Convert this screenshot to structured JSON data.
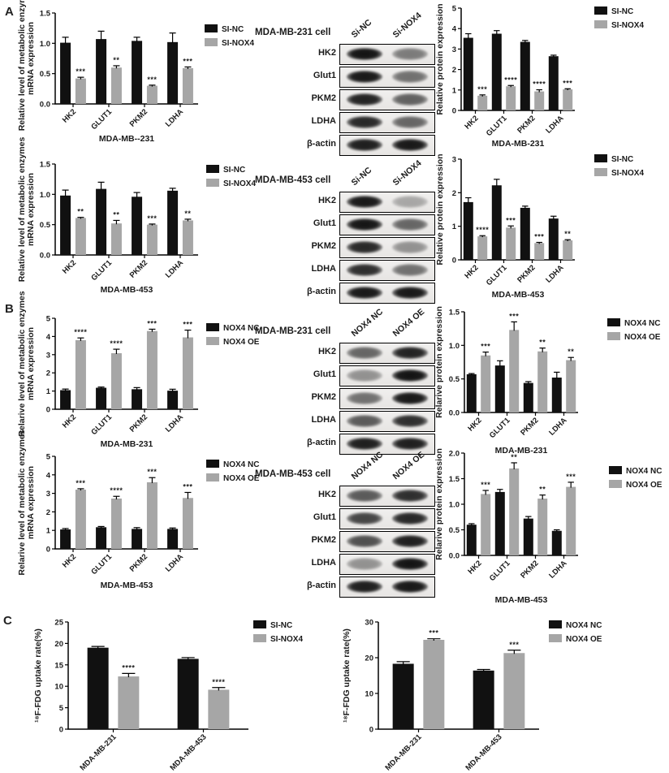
{
  "figure": {
    "panel_labels": {
      "A": "A",
      "B": "B",
      "C": "C"
    }
  },
  "colors": {
    "bar_black": "#111111",
    "bar_gray": "#a6a6a6"
  },
  "blots": [
    {
      "title": "MDA-MB-231 cell",
      "lanes": [
        "Si-NC",
        "Si-NOX4"
      ],
      "rows": [
        "HK2",
        "Glut1",
        "PKM2",
        "LDHA",
        "β-actin"
      ],
      "band_intensities": [
        [
          0.97,
          0.5
        ],
        [
          0.95,
          0.55
        ],
        [
          0.9,
          0.62
        ],
        [
          0.88,
          0.6
        ],
        [
          0.92,
          0.95
        ]
      ]
    },
    {
      "title": "MDA-MB-453 cell",
      "lanes": [
        "Si-NC",
        "Si-NOX4"
      ],
      "rows": [
        "HK2",
        "Glut1",
        "PKM2",
        "LDHA",
        "β-actin"
      ],
      "band_intensities": [
        [
          0.95,
          0.3
        ],
        [
          0.96,
          0.6
        ],
        [
          0.88,
          0.4
        ],
        [
          0.85,
          0.55
        ],
        [
          0.95,
          0.95
        ]
      ]
    },
    {
      "title": "MDA-MB-231 cell",
      "lanes": [
        "NOX4 NC",
        "NOX4 OE"
      ],
      "rows": [
        "HK2",
        "Glut1",
        "PKM2",
        "LDHA",
        "β-actin"
      ],
      "band_intensities": [
        [
          0.6,
          0.9
        ],
        [
          0.4,
          0.97
        ],
        [
          0.55,
          0.95
        ],
        [
          0.65,
          0.85
        ],
        [
          0.92,
          0.92
        ]
      ]
    },
    {
      "title": "MDA-MB-453 cell",
      "lanes": [
        "NOX4 NC",
        "NOX4 OE"
      ],
      "rows": [
        "HK2",
        "Glut1",
        "PKM2",
        "LDHA",
        "β-actin"
      ],
      "band_intensities": [
        [
          0.65,
          0.85
        ],
        [
          0.75,
          0.88
        ],
        [
          0.7,
          0.92
        ],
        [
          0.4,
          0.97
        ],
        [
          0.92,
          0.95
        ]
      ]
    }
  ],
  "chart_data": [
    {
      "type": "bar",
      "categories": [
        "HK2",
        "GLUT1",
        "PKM2",
        "LDHA"
      ],
      "series": [
        {
          "name": "SI-NC",
          "color": "#111111",
          "values": [
            1.01,
            1.07,
            1.04,
            1.02
          ],
          "errors": [
            0.09,
            0.13,
            0.06,
            0.15
          ]
        },
        {
          "name": "SI-NOX4",
          "color": "#a6a6a6",
          "values": [
            0.42,
            0.6,
            0.3,
            0.59
          ],
          "errors": [
            0.02,
            0.03,
            0.01,
            0.02
          ]
        }
      ],
      "sig": [
        "***",
        "**",
        "***",
        "***"
      ],
      "ylabel": [
        "Relative level of  metabolic enzymes",
        "mRNA expression"
      ],
      "xlabel": "MDA-MB--231",
      "ylim": [
        0,
        1.5
      ],
      "yticks": [
        0.0,
        0.5,
        1.0,
        1.5
      ],
      "ytick_decimals": 1,
      "legend_position": "right"
    },
    {
      "type": "bar",
      "categories": [
        "HK2",
        "GLUT1",
        "PKM2",
        "LDHA"
      ],
      "series": [
        {
          "name": "SI-NC",
          "color": "#111111",
          "values": [
            3.55,
            3.75,
            3.35,
            2.65
          ],
          "errors": [
            0.2,
            0.15,
            0.07,
            0.05
          ]
        },
        {
          "name": "SI-NOX4",
          "color": "#a6a6a6",
          "values": [
            0.72,
            1.18,
            0.93,
            1.03
          ],
          "errors": [
            0.04,
            0.04,
            0.08,
            0.03
          ]
        }
      ],
      "sig": [
        "***",
        "****",
        "****",
        "***"
      ],
      "ylabel": [
        "Relative protein expression"
      ],
      "xlabel": "MDA-MB-231",
      "ylim": [
        0,
        5
      ],
      "yticks": [
        0,
        1,
        2,
        3,
        4,
        5
      ],
      "ytick_decimals": 0,
      "legend_position": "right"
    },
    {
      "type": "bar",
      "categories": [
        "HK2",
        "GLUT1",
        "PKM2",
        "LDHA"
      ],
      "series": [
        {
          "name": "SI-NC",
          "color": "#111111",
          "values": [
            0.98,
            1.09,
            0.96,
            1.06
          ],
          "errors": [
            0.09,
            0.11,
            0.07,
            0.04
          ]
        },
        {
          "name": "SI-NOX4",
          "color": "#a6a6a6",
          "values": [
            0.61,
            0.52,
            0.5,
            0.57
          ],
          "errors": [
            0.01,
            0.05,
            0.01,
            0.02
          ]
        }
      ],
      "sig": [
        "**",
        "**",
        "***",
        "**"
      ],
      "ylabel": [
        "Relative level of metabolic enzymes",
        "mRNA expression"
      ],
      "xlabel": "MDA-MB-453",
      "ylim": [
        0,
        1.5
      ],
      "yticks": [
        0.0,
        0.5,
        1.0,
        1.5
      ],
      "ytick_decimals": 1,
      "legend_position": "right"
    },
    {
      "type": "bar",
      "categories": [
        "HK2",
        "GLUT1",
        "PKM2",
        "LDHA"
      ],
      "series": [
        {
          "name": "SI-NC",
          "color": "#111111",
          "values": [
            1.72,
            2.22,
            1.55,
            1.23
          ],
          "errors": [
            0.13,
            0.18,
            0.05,
            0.07
          ]
        },
        {
          "name": "SI-NOX4",
          "color": "#a6a6a6",
          "values": [
            0.7,
            0.96,
            0.5,
            0.58
          ],
          "errors": [
            0.02,
            0.05,
            0.02,
            0.02
          ]
        }
      ],
      "sig": [
        "****",
        "***",
        "***",
        "**"
      ],
      "ylabel": [
        "Relative protein expression"
      ],
      "xlabel": "MDA-MB-453",
      "ylim": [
        0,
        3
      ],
      "yticks": [
        0,
        1,
        2,
        3
      ],
      "ytick_decimals": 0,
      "legend_position": "right"
    },
    {
      "type": "bar",
      "categories": [
        "HK2",
        "GLUT1",
        "PKM2",
        "LDHA"
      ],
      "series": [
        {
          "name": "NOX4 NC",
          "color": "#111111",
          "values": [
            1.05,
            1.18,
            1.1,
            1.02
          ],
          "errors": [
            0.06,
            0.04,
            0.09,
            0.08
          ]
        },
        {
          "name": "NOX4 OE",
          "color": "#a6a6a6",
          "values": [
            3.8,
            3.08,
            4.3,
            3.95
          ],
          "errors": [
            0.12,
            0.22,
            0.1,
            0.4
          ]
        }
      ],
      "sig": [
        "****",
        "****",
        "***",
        "***"
      ],
      "ylabel": [
        "Relarive level of metabolic enzymes",
        "mRNA expression"
      ],
      "xlabel": "MDA-MB-231",
      "ylim": [
        0,
        5
      ],
      "yticks": [
        0,
        1,
        2,
        3,
        4,
        5
      ],
      "ytick_decimals": 0,
      "legend_position": "right"
    },
    {
      "type": "bar",
      "categories": [
        "HK2",
        "GLUT1",
        "PKM2",
        "LDHA"
      ],
      "series": [
        {
          "name": "NOX4 NC",
          "color": "#111111",
          "values": [
            0.57,
            0.7,
            0.44,
            0.52
          ],
          "errors": [
            0.01,
            0.07,
            0.02,
            0.08
          ]
        },
        {
          "name": "NOX4 OE",
          "color": "#a6a6a6",
          "values": [
            0.85,
            1.23,
            0.91,
            0.78
          ],
          "errors": [
            0.05,
            0.12,
            0.05,
            0.04
          ]
        }
      ],
      "sig": [
        "***",
        "***",
        "**",
        "**"
      ],
      "ylabel": [
        "Relarive protein expression"
      ],
      "xlabel": "MDA-MB-231",
      "ylim": [
        0,
        1.5
      ],
      "yticks": [
        0.0,
        0.5,
        1.0,
        1.5
      ],
      "ytick_decimals": 1,
      "legend_position": "right"
    },
    {
      "type": "bar",
      "categories": [
        "HK2",
        "GLUT1",
        "PKM2",
        "LDHA"
      ],
      "series": [
        {
          "name": "NOX4 NC",
          "color": "#111111",
          "values": [
            1.05,
            1.17,
            1.08,
            1.08
          ],
          "errors": [
            0.05,
            0.04,
            0.07,
            0.05
          ]
        },
        {
          "name": "NOX4 OE",
          "color": "#a6a6a6",
          "values": [
            3.2,
            2.72,
            3.6,
            2.75
          ],
          "errors": [
            0.05,
            0.12,
            0.25,
            0.3
          ]
        }
      ],
      "sig": [
        "***",
        "****",
        "***",
        "***"
      ],
      "ylabel": [
        "Relarive level of metabolic enzymes",
        "mRNA expression"
      ],
      "xlabel": "MDA-MB-453",
      "ylim": [
        0,
        5
      ],
      "yticks": [
        0,
        1,
        2,
        3,
        4,
        5
      ],
      "ytick_decimals": 0,
      "legend_position": "right"
    },
    {
      "type": "bar",
      "categories": [
        "HK2",
        "GLUT1",
        "PKM2",
        "LDHA"
      ],
      "series": [
        {
          "name": "NOX4 NC",
          "color": "#111111",
          "values": [
            0.6,
            1.24,
            0.72,
            0.48
          ],
          "errors": [
            0.02,
            0.05,
            0.04,
            0.02
          ]
        },
        {
          "name": "NOX4 OE",
          "color": "#a6a6a6",
          "values": [
            1.2,
            1.7,
            1.11,
            1.34
          ],
          "errors": [
            0.07,
            0.11,
            0.07,
            0.09
          ]
        }
      ],
      "sig": [
        "***",
        "**",
        "**",
        "***"
      ],
      "ylabel": [
        "Relarive protein expression"
      ],
      "xlabel": "MDA-MB-453",
      "ylim": [
        0,
        2
      ],
      "yticks": [
        0.0,
        0.5,
        1.0,
        1.5,
        2.0
      ],
      "ytick_decimals": 1,
      "legend_position": "right"
    },
    {
      "type": "bar",
      "categories": [
        "MDA-MB-231",
        "MDA-MB-453"
      ],
      "series": [
        {
          "name": "SI-NC",
          "color": "#111111",
          "values": [
            19.0,
            16.4
          ],
          "errors": [
            0.3,
            0.3
          ]
        },
        {
          "name": "SI-NOX4",
          "color": "#a6a6a6",
          "values": [
            12.3,
            9.2
          ],
          "errors": [
            0.7,
            0.5
          ]
        }
      ],
      "sig": [
        "****",
        "****"
      ],
      "ylabel": [
        "¹⁸F-FDG uptake rate(%)"
      ],
      "xlabel": "",
      "ylim": [
        0,
        25
      ],
      "yticks": [
        0,
        5,
        10,
        15,
        20,
        25
      ],
      "ytick_decimals": 0,
      "legend_position": "right"
    },
    {
      "type": "bar",
      "categories": [
        "MDA-MB-231",
        "MDA-MB-453"
      ],
      "series": [
        {
          "name": "NOX4 NC",
          "color": "#111111",
          "values": [
            18.3,
            16.4
          ],
          "errors": [
            0.6,
            0.3
          ]
        },
        {
          "name": "NOX4 OE",
          "color": "#a6a6a6",
          "values": [
            25.0,
            21.3
          ],
          "errors": [
            0.3,
            0.8
          ]
        }
      ],
      "sig": [
        "***",
        "***"
      ],
      "ylabel": [
        "¹⁸F-FDG uptake rate(%)"
      ],
      "xlabel": "",
      "ylim": [
        0,
        30
      ],
      "yticks": [
        0,
        10,
        20,
        30
      ],
      "ytick_decimals": 0,
      "legend_position": "right"
    }
  ]
}
